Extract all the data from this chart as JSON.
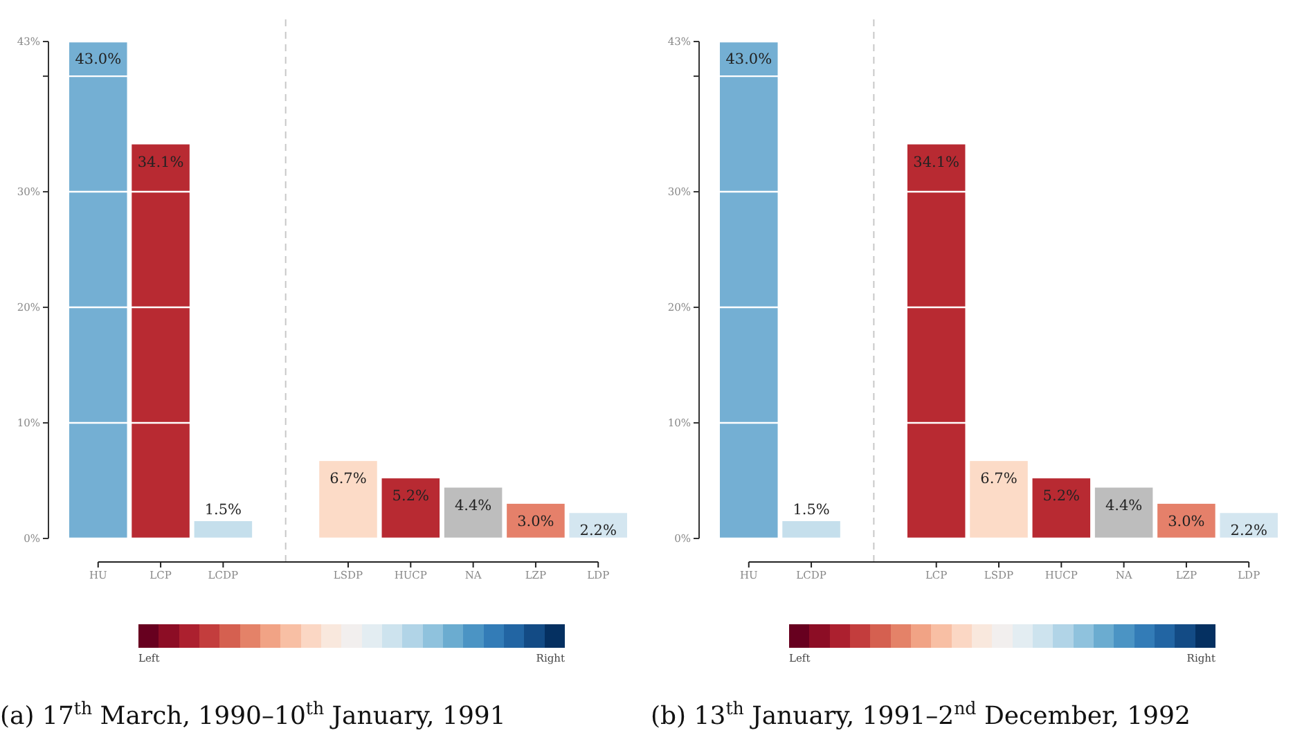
{
  "chart_data": [
    {
      "type": "bar",
      "title": "(a) 17$^{th}$ March, 1990–10$^{th}$ January, 1991",
      "categories": [
        "HU",
        "LCP",
        "LCDP",
        null,
        "LSDP",
        "HUCP",
        "NA",
        "LZP",
        "LDP"
      ],
      "values": [
        43.0,
        34.1,
        1.5,
        null,
        6.7,
        5.2,
        4.4,
        3.0,
        2.2
      ],
      "colors": [
        "#74afd3",
        "#b82a32",
        "#c5dfec",
        null,
        "#fcdbc7",
        "#b82a32",
        "#bdbdbd",
        "#e5806a",
        "#d4e6f0"
      ],
      "value_labels": [
        "43.0%",
        "34.1%",
        "1.5%",
        null,
        "6.7%",
        "5.2%",
        "4.4%",
        "3.0%",
        "2.2%"
      ],
      "ylim": [
        0,
        43
      ],
      "yticks": [
        {
          "value": 0,
          "label": "0%"
        },
        {
          "value": 10,
          "label": "10%"
        },
        {
          "value": 20,
          "label": "20%"
        },
        {
          "value": 30,
          "label": "30%"
        },
        {
          "value": 40,
          "label": null
        },
        {
          "value": 43,
          "label": "43%"
        }
      ],
      "grid": "y",
      "annotations": [
        "Left",
        "Right"
      ]
    },
    {
      "type": "bar",
      "title": "(b) 13$^{th}$ January, 1991–2$^{nd}$ December, 1992",
      "categories": [
        "HU",
        "LCDP",
        null,
        "LCP",
        "LSDP",
        "HUCP",
        "NA",
        "LZP",
        "LDP"
      ],
      "values": [
        43.0,
        1.5,
        null,
        34.1,
        6.7,
        5.2,
        4.4,
        3.0,
        2.2
      ],
      "colors": [
        "#74afd3",
        "#c5dfec",
        null,
        "#b82a32",
        "#fcdbc7",
        "#b82a32",
        "#bdbdbd",
        "#e5806a",
        "#d4e6f0"
      ],
      "value_labels": [
        "43.0%",
        "1.5%",
        null,
        "34.1%",
        "6.7%",
        "5.2%",
        "4.4%",
        "3.0%",
        "2.2%"
      ],
      "ylim": [
        0,
        43
      ],
      "yticks": [
        {
          "value": 0,
          "label": "0%"
        },
        {
          "value": 10,
          "label": "10%"
        },
        {
          "value": 20,
          "label": "20%"
        },
        {
          "value": 30,
          "label": "30%"
        },
        {
          "value": 40,
          "label": null
        },
        {
          "value": 43,
          "label": "43%"
        }
      ],
      "grid": "y",
      "annotations": [
        "Left",
        "Right"
      ]
    }
  ]
}
